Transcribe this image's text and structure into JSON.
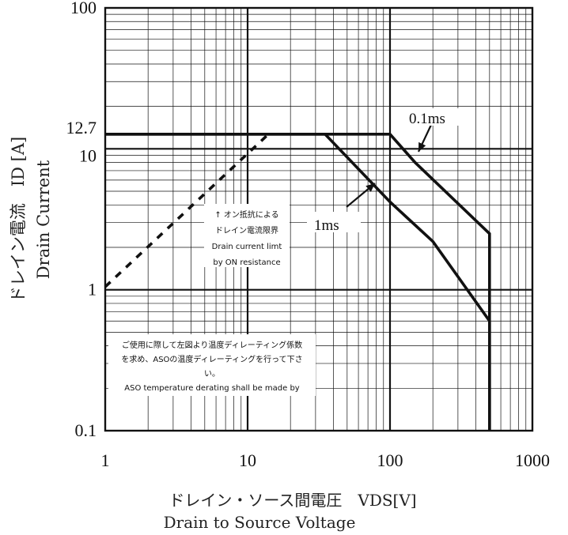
{
  "chart_data": {
    "type": "line",
    "x_scale": "log",
    "y_scale": "log",
    "xlim": [
      1,
      1000
    ],
    "ylim": [
      0.1,
      100
    ],
    "x_ticks": [
      "1",
      "10",
      "100",
      "1000"
    ],
    "y_ticks": [
      "100",
      "12.7",
      "10",
      "1",
      "0.1"
    ],
    "grid": true,
    "ylabel_ja": "ドレイン電流　ID [A]",
    "ylabel_en": "Drain Current",
    "xlabel_ja": "ドレイン・ソース間電圧　VDS[V]",
    "xlabel_en": "Drain to Source Voltage",
    "series": [
      {
        "name": "0.1ms",
        "style": "solid",
        "x": [
          1,
          100,
          150,
          500,
          500
        ],
        "y": [
          12.7,
          12.7,
          8.0,
          2.5,
          0.1
        ]
      },
      {
        "name": "1ms",
        "style": "solid",
        "x": [
          1,
          35,
          100,
          200,
          500,
          500
        ],
        "y": [
          12.7,
          12.7,
          4.2,
          2.2,
          0.6,
          0.1
        ]
      },
      {
        "style": "dashed",
        "x": [
          1,
          14
        ],
        "y": [
          1.05,
          12.7
        ]
      }
    ],
    "annotations": {
      "on_resistance": [
        "↑ オン抵抗による",
        "ドレイン電流限界",
        "Drain current limt",
        "by ON resistance"
      ],
      "derating": [
        "ご使用に際して左図より温度ディレーティング係数",
        "を求め、ASOの温度ディレーティングを行って下さ",
        "い。",
        "ASO temperature derating shall be made by"
      ]
    },
    "colors": {
      "line": "#111111",
      "grid": "#111111",
      "background": "#ffffff"
    }
  }
}
